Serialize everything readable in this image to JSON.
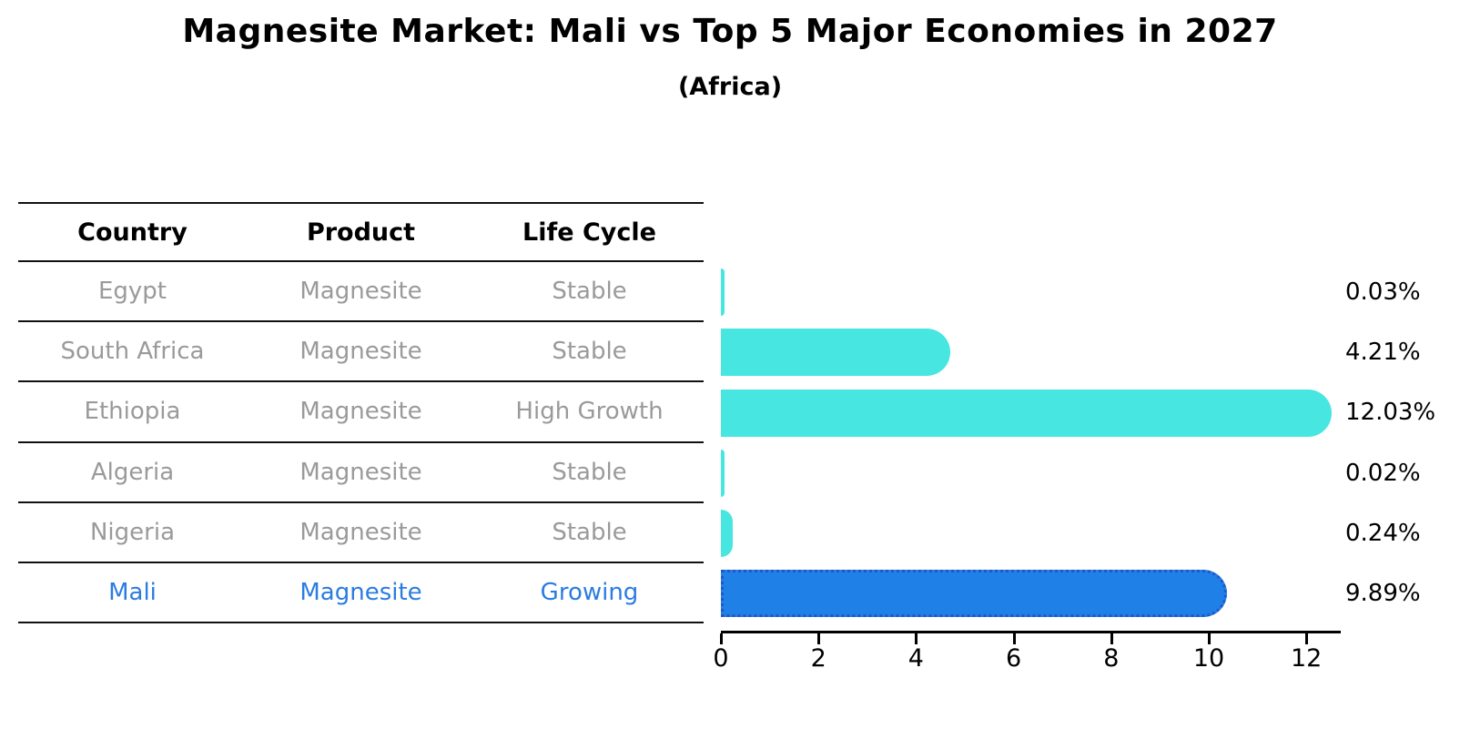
{
  "title": "Magnesite Market: Mali vs Top 5 Major Economies in 2027",
  "subtitle": "(Africa)",
  "table": {
    "headers": [
      "Country",
      "Product",
      "Life Cycle"
    ],
    "rows": [
      {
        "country": "Egypt",
        "product": "Magnesite",
        "life_cycle": "Stable",
        "highlight": false
      },
      {
        "country": "South Africa",
        "product": "Magnesite",
        "life_cycle": "Stable",
        "highlight": false
      },
      {
        "country": "Ethiopia",
        "product": "Magnesite",
        "life_cycle": "High Growth",
        "highlight": false
      },
      {
        "country": "Algeria",
        "product": "Magnesite",
        "life_cycle": "Stable",
        "highlight": false
      },
      {
        "country": "Nigeria",
        "product": "Magnesite",
        "life_cycle": "Stable",
        "highlight": false
      },
      {
        "country": "Mali",
        "product": "Magnesite",
        "life_cycle": "Growing",
        "highlight": true
      }
    ]
  },
  "chart_data": {
    "type": "bar",
    "orientation": "horizontal",
    "title": "Magnesite Market: Mali vs Top 5 Major Economies in 2027",
    "subtitle": "(Africa)",
    "categories": [
      "Egypt",
      "South Africa",
      "Ethiopia",
      "Algeria",
      "Nigeria",
      "Mali"
    ],
    "values": [
      0.03,
      4.21,
      12.03,
      0.02,
      0.24,
      9.89
    ],
    "value_labels": [
      "0.03%",
      "4.21%",
      "12.03%",
      "0.02%",
      "0.24%",
      "9.89%"
    ],
    "highlight_category": "Mali",
    "x_ticks": [
      0,
      2,
      4,
      6,
      8,
      10,
      12
    ],
    "x_tick_labels": [
      "0",
      "2",
      "4",
      "6",
      "8",
      "10",
      "12"
    ],
    "xlim": [
      0,
      12.65
    ],
    "grid": false,
    "legend": "none",
    "colors": {
      "bar_default": "#47e6e0",
      "bar_highlight": "#1f80e8",
      "bar_highlight_edge": "#2456c8",
      "highlight_text": "#2b7ce0",
      "cell_text": "#9a9a9a",
      "axis_text": "#000000"
    }
  }
}
